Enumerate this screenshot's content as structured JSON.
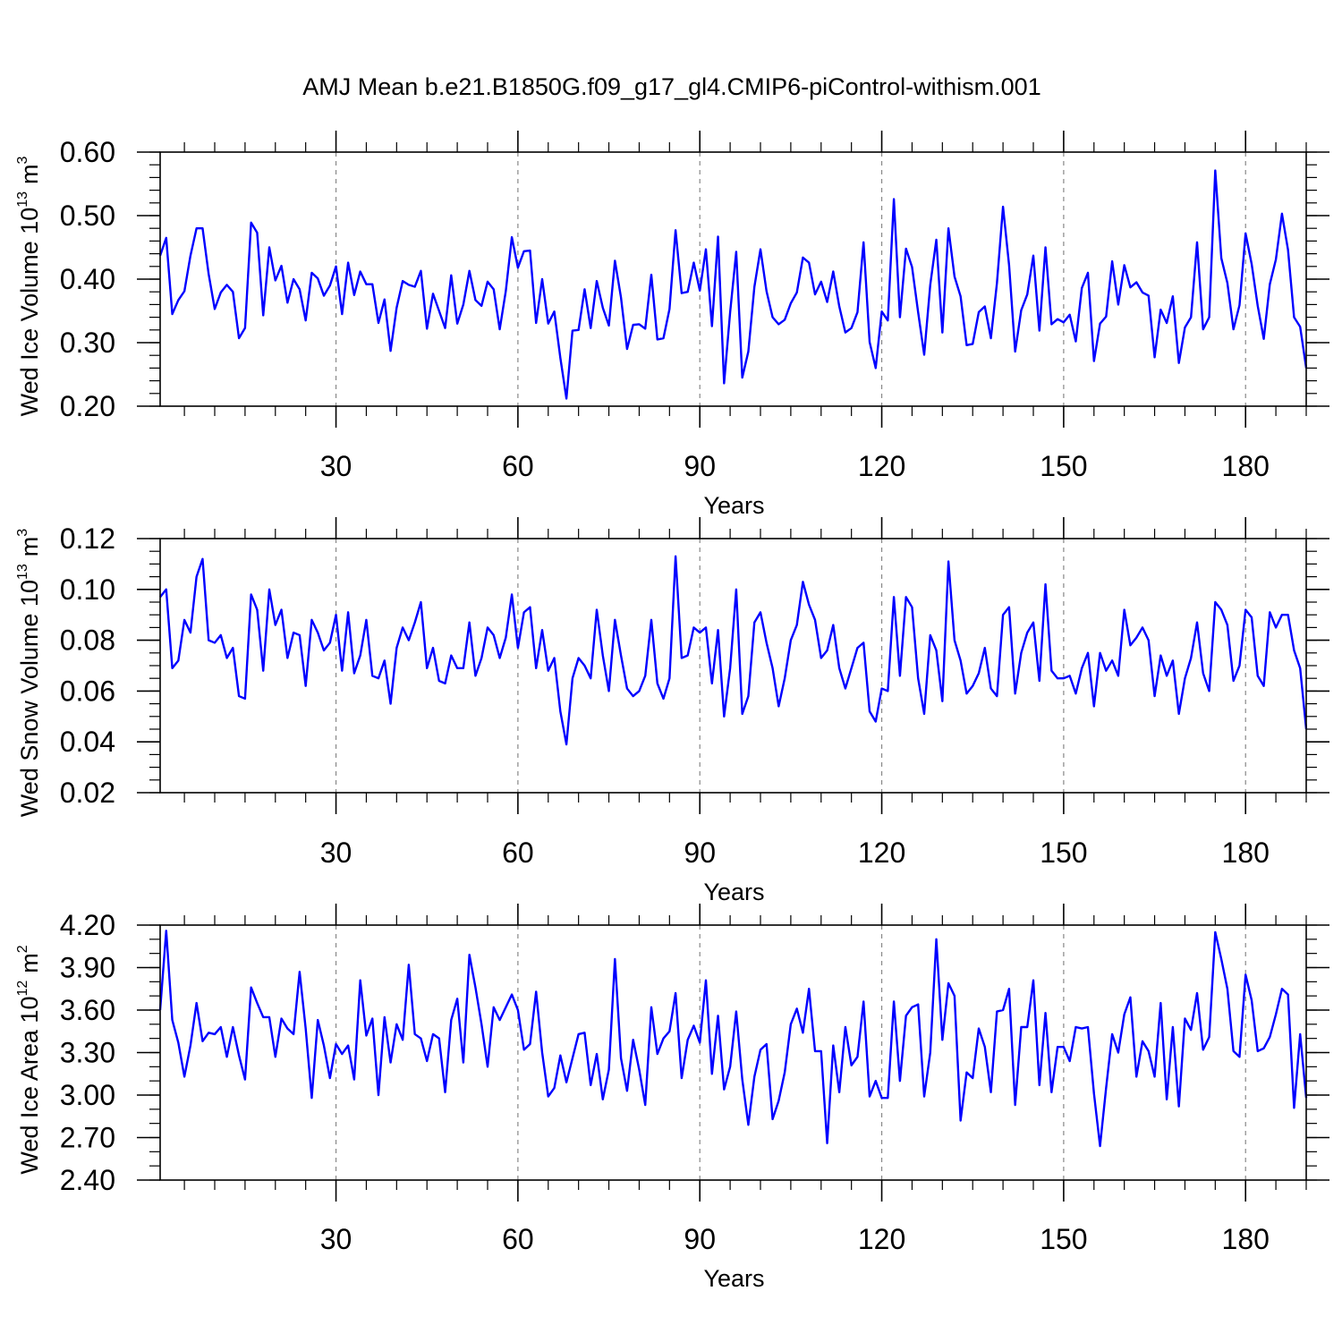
{
  "figure": {
    "title": "AMJ Mean b.e21.B1850G.f09_g17_gl4.CMIP6-piControl-withism.001"
  },
  "style": {
    "line_color": "#0000ff",
    "axis_color": "#000000",
    "grid_color": "#888888"
  },
  "chart_data": [
    {
      "type": "line",
      "name": "ice-volume",
      "title": "",
      "xlabel": "Years",
      "ylabel_main": "Wed Ice Volume 10",
      "ylabel_exp": "13",
      "ylabel_unit": "m",
      "ylabel_unit_exp": "3",
      "xlim": [
        1,
        190
      ],
      "ylim": [
        0.2,
        0.6
      ],
      "x_ticks": [
        30,
        60,
        90,
        120,
        150,
        180
      ],
      "x_tick_labels": [
        "30",
        "60",
        "90",
        "120",
        "150",
        "180"
      ],
      "y_ticks": [
        0.2,
        0.3,
        0.4,
        0.5,
        0.6
      ],
      "y_tick_labels": [
        "0.20",
        "0.30",
        "0.40",
        "0.50",
        "0.60"
      ],
      "y_minor_step": 0.02,
      "x_minor_step": 5,
      "vertical_grid": "dashed at major x ticks",
      "x_start": 1,
      "values": [
        0.437,
        0.465,
        0.345,
        0.367,
        0.381,
        0.437,
        0.48,
        0.48,
        0.408,
        0.353,
        0.379,
        0.391,
        0.38,
        0.307,
        0.323,
        0.489,
        0.473,
        0.343,
        0.45,
        0.398,
        0.421,
        0.363,
        0.4,
        0.384,
        0.335,
        0.41,
        0.401,
        0.374,
        0.39,
        0.42,
        0.345,
        0.426,
        0.375,
        0.412,
        0.392,
        0.392,
        0.331,
        0.368,
        0.287,
        0.355,
        0.397,
        0.391,
        0.388,
        0.413,
        0.322,
        0.377,
        0.35,
        0.323,
        0.406,
        0.33,
        0.36,
        0.413,
        0.367,
        0.358,
        0.396,
        0.384,
        0.321,
        0.381,
        0.466,
        0.418,
        0.444,
        0.445,
        0.331,
        0.4,
        0.33,
        0.349,
        0.276,
        0.212,
        0.319,
        0.32,
        0.384,
        0.323,
        0.397,
        0.355,
        0.327,
        0.429,
        0.371,
        0.29,
        0.328,
        0.329,
        0.322,
        0.407,
        0.305,
        0.307,
        0.353,
        0.477,
        0.378,
        0.38,
        0.426,
        0.382,
        0.447,
        0.326,
        0.467,
        0.236,
        0.348,
        0.443,
        0.245,
        0.286,
        0.388,
        0.447,
        0.381,
        0.34,
        0.329,
        0.336,
        0.362,
        0.379,
        0.434,
        0.426,
        0.376,
        0.396,
        0.364,
        0.412,
        0.357,
        0.316,
        0.323,
        0.348,
        0.458,
        0.301,
        0.26,
        0.349,
        0.335,
        0.526,
        0.34,
        0.448,
        0.419,
        0.348,
        0.281,
        0.391,
        0.462,
        0.316,
        0.48,
        0.404,
        0.373,
        0.296,
        0.298,
        0.348,
        0.357,
        0.307,
        0.394,
        0.514,
        0.422,
        0.286,
        0.351,
        0.376,
        0.437,
        0.319,
        0.45,
        0.329,
        0.337,
        0.332,
        0.344,
        0.302,
        0.386,
        0.41,
        0.271,
        0.33,
        0.341,
        0.428,
        0.36,
        0.422,
        0.387,
        0.395,
        0.379,
        0.374,
        0.277,
        0.352,
        0.331,
        0.373,
        0.268,
        0.324,
        0.34,
        0.458,
        0.321,
        0.34,
        0.571,
        0.433,
        0.394,
        0.321,
        0.359,
        0.472,
        0.424,
        0.358,
        0.306,
        0.392,
        0.431,
        0.503,
        0.446,
        0.34,
        0.325,
        0.26
      ]
    },
    {
      "type": "line",
      "name": "snow-volume",
      "title": "",
      "xlabel": "Years",
      "ylabel_main": "Wed Snow Volume 10",
      "ylabel_exp": "13",
      "ylabel_unit": "m",
      "ylabel_unit_exp": "3",
      "xlim": [
        1,
        190
      ],
      "ylim": [
        0.02,
        0.12
      ],
      "x_ticks": [
        30,
        60,
        90,
        120,
        150,
        180
      ],
      "x_tick_labels": [
        "30",
        "60",
        "90",
        "120",
        "150",
        "180"
      ],
      "y_ticks": [
        0.02,
        0.04,
        0.06,
        0.08,
        0.1,
        0.12
      ],
      "y_tick_labels": [
        "0.02",
        "0.04",
        "0.06",
        "0.08",
        "0.10",
        "0.12"
      ],
      "y_minor_step": 0.005,
      "x_minor_step": 5,
      "vertical_grid": "dashed at major x ticks",
      "x_start": 1,
      "values": [
        0.097,
        0.1,
        0.069,
        0.072,
        0.088,
        0.083,
        0.105,
        0.112,
        0.08,
        0.079,
        0.082,
        0.073,
        0.077,
        0.058,
        0.057,
        0.098,
        0.092,
        0.068,
        0.1,
        0.086,
        0.092,
        0.073,
        0.083,
        0.082,
        0.062,
        0.088,
        0.083,
        0.076,
        0.079,
        0.09,
        0.068,
        0.091,
        0.067,
        0.074,
        0.088,
        0.066,
        0.065,
        0.072,
        0.055,
        0.077,
        0.085,
        0.08,
        0.087,
        0.095,
        0.069,
        0.077,
        0.064,
        0.063,
        0.074,
        0.069,
        0.069,
        0.087,
        0.066,
        0.073,
        0.085,
        0.082,
        0.073,
        0.081,
        0.098,
        0.077,
        0.091,
        0.093,
        0.069,
        0.084,
        0.068,
        0.073,
        0.052,
        0.039,
        0.065,
        0.073,
        0.07,
        0.065,
        0.092,
        0.074,
        0.06,
        0.088,
        0.074,
        0.061,
        0.058,
        0.06,
        0.066,
        0.088,
        0.063,
        0.057,
        0.065,
        0.113,
        0.073,
        0.074,
        0.085,
        0.083,
        0.085,
        0.063,
        0.084,
        0.05,
        0.069,
        0.1,
        0.051,
        0.058,
        0.087,
        0.091,
        0.079,
        0.069,
        0.054,
        0.065,
        0.08,
        0.086,
        0.103,
        0.094,
        0.088,
        0.073,
        0.076,
        0.086,
        0.069,
        0.061,
        0.069,
        0.077,
        0.079,
        0.052,
        0.048,
        0.061,
        0.06,
        0.097,
        0.066,
        0.097,
        0.093,
        0.065,
        0.051,
        0.082,
        0.076,
        0.056,
        0.111,
        0.08,
        0.072,
        0.059,
        0.062,
        0.067,
        0.077,
        0.061,
        0.058,
        0.09,
        0.093,
        0.059,
        0.075,
        0.083,
        0.087,
        0.064,
        0.102,
        0.068,
        0.065,
        0.065,
        0.066,
        0.059,
        0.069,
        0.075,
        0.054,
        0.075,
        0.068,
        0.072,
        0.066,
        0.092,
        0.078,
        0.081,
        0.085,
        0.08,
        0.058,
        0.074,
        0.066,
        0.072,
        0.051,
        0.065,
        0.073,
        0.087,
        0.067,
        0.06,
        0.095,
        0.092,
        0.086,
        0.064,
        0.07,
        0.092,
        0.089,
        0.066,
        0.062,
        0.091,
        0.085,
        0.09,
        0.09,
        0.076,
        0.069,
        0.045
      ]
    },
    {
      "type": "line",
      "name": "ice-area",
      "title": "",
      "xlabel": "Years",
      "ylabel_main": "Wed Ice Area 10",
      "ylabel_exp": "12",
      "ylabel_unit": "m",
      "ylabel_unit_exp": "2",
      "xlim": [
        1,
        190
      ],
      "ylim": [
        2.4,
        4.2
      ],
      "x_ticks": [
        30,
        60,
        90,
        120,
        150,
        180
      ],
      "x_tick_labels": [
        "30",
        "60",
        "90",
        "120",
        "150",
        "180"
      ],
      "y_ticks": [
        2.4,
        2.7,
        3.0,
        3.3,
        3.6,
        3.9,
        4.2
      ],
      "y_tick_labels": [
        "2.40",
        "2.70",
        "3.00",
        "3.30",
        "3.60",
        "3.90",
        "4.20"
      ],
      "y_minor_step": 0.1,
      "x_minor_step": 5,
      "vertical_grid": "dashed at major x ticks",
      "x_start": 1,
      "values": [
        3.6,
        4.16,
        3.53,
        3.37,
        3.13,
        3.35,
        3.65,
        3.38,
        3.44,
        3.43,
        3.48,
        3.27,
        3.48,
        3.28,
        3.11,
        3.76,
        3.65,
        3.55,
        3.55,
        3.27,
        3.54,
        3.47,
        3.43,
        3.87,
        3.47,
        2.98,
        3.53,
        3.35,
        3.12,
        3.36,
        3.29,
        3.35,
        3.11,
        3.81,
        3.42,
        3.54,
        3.0,
        3.55,
        3.23,
        3.5,
        3.39,
        3.92,
        3.43,
        3.4,
        3.24,
        3.43,
        3.4,
        3.02,
        3.53,
        3.68,
        3.23,
        3.99,
        3.76,
        3.5,
        3.2,
        3.62,
        3.53,
        3.62,
        3.71,
        3.6,
        3.32,
        3.36,
        3.73,
        3.3,
        2.99,
        3.05,
        3.28,
        3.09,
        3.26,
        3.43,
        3.44,
        3.07,
        3.29,
        2.97,
        3.18,
        3.96,
        3.26,
        3.03,
        3.39,
        3.18,
        2.93,
        3.62,
        3.29,
        3.4,
        3.45,
        3.72,
        3.12,
        3.39,
        3.49,
        3.37,
        3.81,
        3.15,
        3.56,
        3.04,
        3.2,
        3.59,
        3.11,
        2.79,
        3.13,
        3.32,
        3.36,
        2.83,
        2.96,
        3.16,
        3.5,
        3.61,
        3.44,
        3.75,
        3.31,
        3.31,
        2.66,
        3.35,
        3.02,
        3.48,
        3.21,
        3.27,
        3.66,
        2.99,
        3.1,
        2.98,
        2.98,
        3.66,
        3.1,
        3.56,
        3.62,
        3.64,
        2.99,
        3.3,
        4.1,
        3.39,
        3.79,
        3.7,
        2.82,
        3.16,
        3.12,
        3.47,
        3.34,
        3.02,
        3.59,
        3.6,
        3.75,
        2.93,
        3.48,
        3.48,
        3.81,
        3.07,
        3.58,
        3.02,
        3.34,
        3.34,
        3.24,
        3.48,
        3.47,
        3.48,
        3.01,
        2.64,
        3.05,
        3.43,
        3.3,
        3.57,
        3.69,
        3.13,
        3.38,
        3.31,
        3.13,
        3.65,
        2.97,
        3.48,
        2.92,
        3.54,
        3.46,
        3.72,
        3.32,
        3.41,
        4.15,
        3.96,
        3.75,
        3.31,
        3.27,
        3.85,
        3.67,
        3.31,
        3.33,
        3.41,
        3.57,
        3.75,
        3.71,
        2.91,
        3.43,
        2.98
      ]
    }
  ]
}
